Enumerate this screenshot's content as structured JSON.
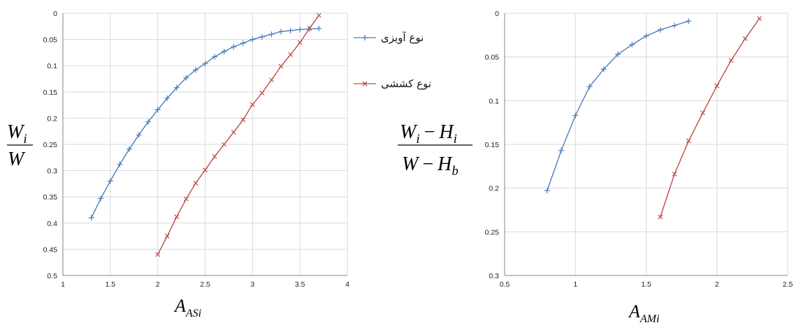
{
  "colors": {
    "series_blue": "#4A7EBB",
    "series_red": "#BE4B48",
    "grid": "#D9D9D9",
    "axis": "#868686"
  },
  "legend": {
    "series_hanging": "نوع آویزی",
    "series_tension": "نوع کششی"
  },
  "left_ylabel": {
    "numerator_base": "W",
    "numerator_sub": "i",
    "denominator": "W"
  },
  "right_ylabel": {
    "num_a": "W",
    "num_a_sub": "i",
    "minus": "−",
    "num_b": "H",
    "num_b_sub": "i",
    "den_a": "W",
    "den_b": "H",
    "den_b_sub": "b"
  },
  "left_xlabel": {
    "base": "A",
    "sub": "ASi"
  },
  "right_xlabel": {
    "base": "A",
    "sub": "AMi"
  },
  "chart_data": [
    {
      "type": "line",
      "xlabel": "A_ASi",
      "ylabel": "W_i / W",
      "xlim": [
        1,
        4
      ],
      "ylim": [
        0,
        0.5
      ],
      "y_inverted": true,
      "grid": true,
      "x_ticks": [
        "1",
        "1.5",
        "2",
        "2.5",
        "3",
        "3.5",
        "4"
      ],
      "y_ticks": [
        "0",
        "0.05",
        "0.1",
        "0.15",
        "0.2",
        "0.25",
        "0.3",
        "0.35",
        "0.4",
        "0.45",
        "0.5"
      ],
      "series": [
        {
          "name": "نوع آویزی",
          "marker": "+",
          "color": "#4A7EBB",
          "points": [
            [
              1.3,
              0.39
            ],
            [
              1.4,
              0.353
            ],
            [
              1.5,
              0.32
            ],
            [
              1.6,
              0.288
            ],
            [
              1.7,
              0.259
            ],
            [
              1.8,
              0.232
            ],
            [
              1.9,
              0.207
            ],
            [
              2.0,
              0.184
            ],
            [
              2.1,
              0.162
            ],
            [
              2.2,
              0.142
            ],
            [
              2.3,
              0.123
            ],
            [
              2.4,
              0.108
            ],
            [
              2.5,
              0.096
            ],
            [
              2.6,
              0.083
            ],
            [
              2.7,
              0.073
            ],
            [
              2.8,
              0.064
            ],
            [
              2.9,
              0.057
            ],
            [
              3.0,
              0.05
            ],
            [
              3.1,
              0.045
            ],
            [
              3.2,
              0.04
            ],
            [
              3.3,
              0.035
            ],
            [
              3.4,
              0.033
            ],
            [
              3.5,
              0.031
            ],
            [
              3.6,
              0.03
            ],
            [
              3.7,
              0.029
            ]
          ]
        },
        {
          "name": "نوع کششی",
          "marker": "x",
          "color": "#BE4B48",
          "points": [
            [
              2.0,
              0.46
            ],
            [
              2.1,
              0.425
            ],
            [
              2.2,
              0.388
            ],
            [
              2.3,
              0.354
            ],
            [
              2.4,
              0.324
            ],
            [
              2.5,
              0.299
            ],
            [
              2.6,
              0.273
            ],
            [
              2.7,
              0.25
            ],
            [
              2.8,
              0.227
            ],
            [
              2.9,
              0.203
            ],
            [
              3.0,
              0.174
            ],
            [
              3.1,
              0.152
            ],
            [
              3.2,
              0.127
            ],
            [
              3.3,
              0.101
            ],
            [
              3.4,
              0.079
            ],
            [
              3.5,
              0.056
            ],
            [
              3.6,
              0.029
            ],
            [
              3.7,
              0.004
            ]
          ]
        }
      ]
    },
    {
      "type": "line",
      "xlabel": "A_AMi",
      "ylabel": "(W_i − H_i) / (W − H_b)",
      "xlim": [
        0.5,
        2.5
      ],
      "ylim": [
        0,
        0.3
      ],
      "y_inverted": true,
      "grid": true,
      "x_ticks": [
        "0.5",
        "1",
        "1.5",
        "2",
        "2.5"
      ],
      "y_ticks": [
        "0",
        "0.05",
        "0.1",
        "0.15",
        "0.2",
        "0.25",
        "0.3"
      ],
      "series": [
        {
          "name": "نوع آویزی",
          "marker": "+",
          "color": "#4A7EBB",
          "points": [
            [
              0.8,
              0.203
            ],
            [
              0.9,
              0.157
            ],
            [
              1.0,
              0.117
            ],
            [
              1.1,
              0.084
            ],
            [
              1.2,
              0.064
            ],
            [
              1.3,
              0.047
            ],
            [
              1.4,
              0.036
            ],
            [
              1.5,
              0.026
            ],
            [
              1.6,
              0.019
            ],
            [
              1.7,
              0.014
            ],
            [
              1.8,
              0.009
            ]
          ]
        },
        {
          "name": "نوع کششی",
          "marker": "x",
          "color": "#BE4B48",
          "points": [
            [
              1.6,
              0.233
            ],
            [
              1.7,
              0.184
            ],
            [
              1.8,
              0.146
            ],
            [
              1.9,
              0.114
            ],
            [
              2.0,
              0.083
            ],
            [
              2.1,
              0.054
            ],
            [
              2.2,
              0.029
            ],
            [
              2.3,
              0.006
            ]
          ]
        }
      ]
    }
  ]
}
